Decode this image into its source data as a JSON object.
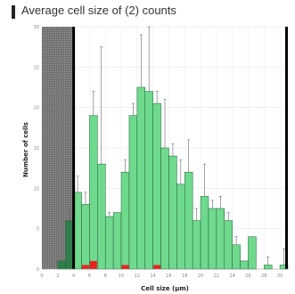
{
  "header": {
    "title": "Average cell size of (2) counts"
  },
  "chart_data": {
    "type": "bar",
    "xlabel": "Cell size (µm)",
    "ylabel": "Number of cells",
    "xlim": [
      0,
      31
    ],
    "ylim": [
      0,
      30
    ],
    "x_ticks": [
      0,
      2,
      4,
      6,
      8,
      10,
      12,
      14,
      16,
      18,
      20,
      22,
      24,
      26,
      28,
      30
    ],
    "y_ticks": [
      0,
      5,
      10,
      15,
      20,
      25,
      30
    ],
    "bin_width": 1,
    "grid": true,
    "gate": {
      "excluded_below": 4,
      "gate_lines": [
        4,
        31
      ]
    },
    "colors": {
      "gated": "#6fd98e",
      "excluded": "#2e7d4a",
      "red_series": "#e8241f",
      "gate_shade": "#7a7a7a",
      "gate_line": "#000000",
      "error_bar": "#666666"
    },
    "series": [
      {
        "x": [
          2,
          3,
          4,
          5,
          6,
          7,
          8,
          9,
          10,
          11,
          12,
          13,
          14,
          15,
          16,
          17,
          18,
          19,
          20,
          21,
          22,
          23,
          24,
          25,
          26,
          28,
          30
        ],
        "values": [
          1,
          6,
          9.5,
          8,
          19,
          13,
          6.5,
          7,
          12,
          19,
          22.5,
          22,
          20.5,
          15,
          14,
          10.5,
          12,
          6,
          9,
          7.5,
          7.5,
          6,
          3,
          1,
          4,
          0.5,
          0.5
        ],
        "errors": [
          0,
          1.5,
          2,
          1.5,
          3,
          14.5,
          0.5,
          0,
          1.5,
          1.5,
          6.5,
          8,
          1.5,
          6,
          1.5,
          3,
          4,
          1.5,
          4,
          1,
          1.5,
          1,
          1,
          0,
          0,
          1,
          2
        ]
      },
      {
        "x": [
          5,
          6,
          10,
          14
        ],
        "values": [
          0.5,
          1,
          0.5,
          0.5
        ],
        "errors": [
          0,
          0,
          0,
          0
        ]
      }
    ]
  }
}
